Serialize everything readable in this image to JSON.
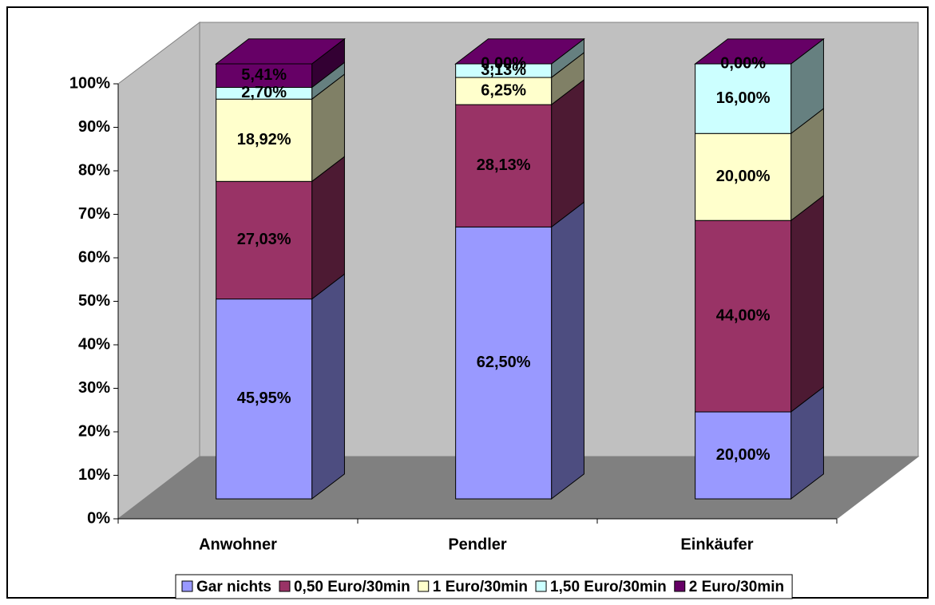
{
  "chart_data": {
    "type": "bar3d_stacked",
    "categories": [
      "Anwohner",
      "Pendler",
      "Einkäufer"
    ],
    "series": [
      {
        "name": "Gar nichts",
        "color": "#9999ff",
        "values": [
          45.95,
          62.5,
          20.0
        ],
        "value_labels": [
          "45,95%",
          "62,50%",
          "20,00%"
        ]
      },
      {
        "name": "0,50 Euro/30min",
        "color": "#993366",
        "values": [
          27.03,
          28.13,
          44.0
        ],
        "value_labels": [
          "27,03%",
          "28,13%",
          "44,00%"
        ]
      },
      {
        "name": "1 Euro/30min",
        "color": "#ffffcc",
        "values": [
          18.92,
          6.25,
          20.0
        ],
        "value_labels": [
          "18,92%",
          "6,25%",
          "20,00%"
        ]
      },
      {
        "name": "1,50 Euro/30min",
        "color": "#ccffff",
        "values": [
          2.7,
          3.13,
          16.0
        ],
        "value_labels": [
          "2,70%",
          "3,13%",
          "16,00%"
        ]
      },
      {
        "name": "2 Euro/30min",
        "color": "#660066",
        "values": [
          5.41,
          0.0,
          0.0
        ],
        "value_labels": [
          "5,41%",
          "0,00%",
          "0,00%"
        ]
      }
    ],
    "ylim": [
      0,
      100
    ],
    "yticks": [
      {
        "value": 0,
        "label": "0%"
      },
      {
        "value": 10,
        "label": "10%"
      },
      {
        "value": 20,
        "label": "20%"
      },
      {
        "value": 30,
        "label": "30%"
      },
      {
        "value": 40,
        "label": "40%"
      },
      {
        "value": 50,
        "label": "50%"
      },
      {
        "value": 60,
        "label": "60%"
      },
      {
        "value": 70,
        "label": "70%"
      },
      {
        "value": 80,
        "label": "80%"
      },
      {
        "value": 90,
        "label": "90%"
      },
      {
        "value": 100,
        "label": "100%"
      }
    ],
    "legend": "bottom"
  }
}
